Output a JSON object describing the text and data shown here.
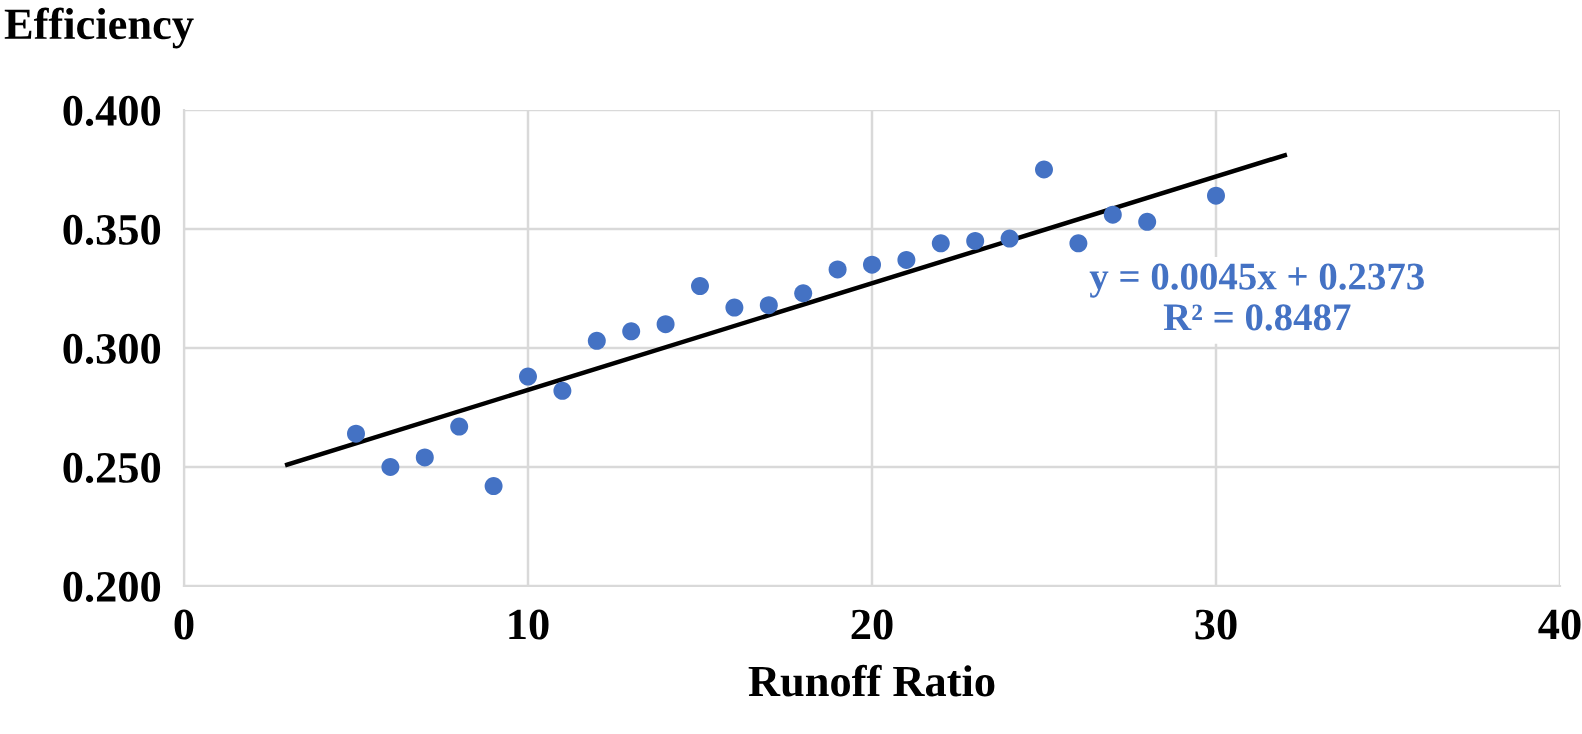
{
  "chart_data": {
    "type": "scatter",
    "xlabel": "Runoff Ratio",
    "ylabel": "Efficiency",
    "series": [
      {
        "marker": "circle",
        "color": "#4472c4",
        "x": [
          5,
          6,
          7,
          8,
          9,
          10,
          11,
          12,
          13,
          14,
          15,
          16,
          17,
          18,
          19,
          20,
          21,
          22,
          23,
          24,
          25,
          26,
          27,
          28,
          30
        ],
        "values": [
          0.264,
          0.25,
          0.254,
          0.267,
          0.242,
          0.288,
          0.282,
          0.303,
          0.307,
          0.31,
          0.326,
          0.317,
          0.318,
          0.323,
          0.333,
          0.335,
          0.337,
          0.344,
          0.345,
          0.346,
          0.375,
          0.344,
          0.356,
          0.353,
          0.364
        ]
      },
      {
        "type": "line",
        "marker": "none",
        "color": "#000000",
        "x": [
          3,
          32
        ],
        "values": [
          0.251,
          0.381
        ]
      }
    ],
    "annotations": [
      "y = 0.0045x + 0.2373\nR² = 0.8487"
    ],
    "xlim": [
      0,
      40
    ],
    "xticks": [
      0,
      10,
      20,
      30,
      40
    ],
    "ylim": [
      0.2,
      0.4
    ],
    "yticks": [
      {
        "value": 0.2,
        "label": "0.200"
      },
      {
        "value": 0.25,
        "label": "0.250"
      },
      {
        "value": 0.3,
        "label": "0.300"
      },
      {
        "value": 0.35,
        "label": "0.350"
      },
      {
        "value": 0.4,
        "label": "0.400"
      }
    ],
    "grid": true
  }
}
